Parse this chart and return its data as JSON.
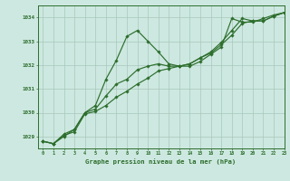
{
  "title": "Graphe pression niveau de la mer (hPa)",
  "xlim": [
    -0.5,
    23
  ],
  "ylim": [
    1028.5,
    1034.5
  ],
  "yticks": [
    1029,
    1030,
    1031,
    1032,
    1033,
    1034
  ],
  "xticks": [
    0,
    1,
    2,
    3,
    4,
    5,
    6,
    7,
    8,
    9,
    10,
    11,
    12,
    13,
    14,
    15,
    16,
    17,
    18,
    19,
    20,
    21,
    22,
    23
  ],
  "bg_color": "#cde8e0",
  "grid_color": "#a8c8bc",
  "line_color": "#2d6e2d",
  "series1": [
    1028.8,
    1028.7,
    1029.0,
    1029.3,
    1030.0,
    1030.3,
    1031.4,
    1032.2,
    1033.2,
    1033.45,
    1033.0,
    1032.55,
    1032.05,
    1031.95,
    1031.95,
    1032.15,
    1032.45,
    1032.75,
    1033.95,
    1033.8,
    1033.8,
    1033.95,
    1034.1,
    1034.2
  ],
  "series2": [
    1028.8,
    1028.7,
    1029.1,
    1029.3,
    1030.0,
    1030.15,
    1030.7,
    1031.2,
    1031.4,
    1031.8,
    1031.95,
    1032.05,
    1031.95,
    1031.95,
    1032.05,
    1032.3,
    1032.55,
    1032.95,
    1033.45,
    1033.95,
    1033.85,
    1033.85,
    1034.05,
    1034.2
  ],
  "series3": [
    1028.8,
    1028.7,
    1029.05,
    1029.2,
    1029.95,
    1030.05,
    1030.3,
    1030.65,
    1030.9,
    1031.2,
    1031.45,
    1031.75,
    1031.85,
    1031.95,
    1032.05,
    1032.3,
    1032.5,
    1032.85,
    1033.25,
    1033.75,
    1033.85,
    1033.85,
    1034.05,
    1034.2
  ]
}
